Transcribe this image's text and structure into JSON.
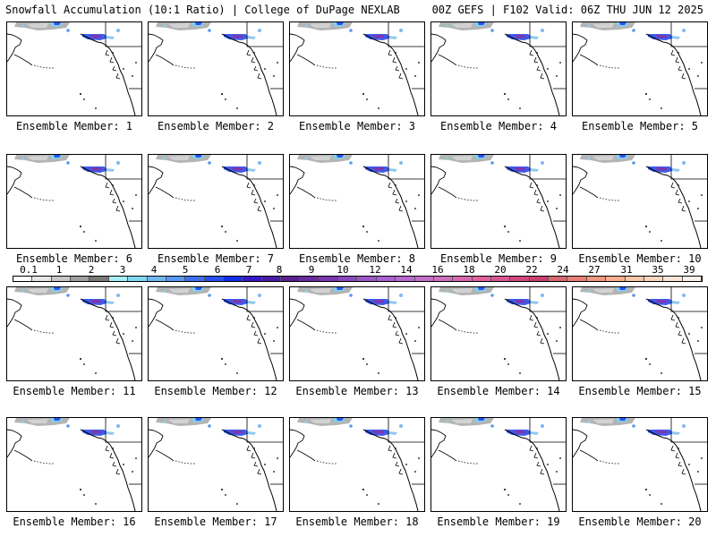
{
  "header": {
    "left": "Snowfall Accumulation (10:1 Ratio) | College of DuPage NEXLAB",
    "right": "00Z GEFS | F102 Valid: 06Z THU JUN 12 2025"
  },
  "members": [
    "Ensemble Member: 1",
    "Ensemble Member: 2",
    "Ensemble Member: 3",
    "Ensemble Member: 4",
    "Ensemble Member: 5",
    "Ensemble Member: 6",
    "Ensemble Member: 7",
    "Ensemble Member: 8",
    "Ensemble Member: 9",
    "Ensemble Member: 10",
    "Ensemble Member: 11",
    "Ensemble Member: 12",
    "Ensemble Member: 13",
    "Ensemble Member: 14",
    "Ensemble Member: 15",
    "Ensemble Member: 16",
    "Ensemble Member: 17",
    "Ensemble Member: 18",
    "Ensemble Member: 19",
    "Ensemble Member: 20"
  ],
  "legend": {
    "labels": [
      "0.1",
      "1",
      "2",
      "3",
      "4",
      "5",
      "6",
      "7",
      "8",
      "9",
      "10",
      "12",
      "14",
      "16",
      "18",
      "20",
      "22",
      "24",
      "27",
      "31",
      "35",
      "39"
    ],
    "colors": [
      "#ffffff",
      "#e6e6e6",
      "#c8c8c8",
      "#a0a0a0",
      "#7a7a7a",
      "#a8f0f8",
      "#80d8f0",
      "#70b8f0",
      "#5898f0",
      "#4070f0",
      "#2850f0",
      "#1030e8",
      "#3818c8",
      "#4a1aa8",
      "#5a2090",
      "#6a2aa0",
      "#7a38b0",
      "#8a48c0",
      "#9a58c8",
      "#aa60d0",
      "#b868d0",
      "#c470c8",
      "#d070c0",
      "#d868b0",
      "#e060a0",
      "#d85890",
      "#d04880",
      "#c84070",
      "#d86870",
      "#e88078",
      "#f09880",
      "#f8b090",
      "#f8c8a8",
      "#f8d8c0",
      "#fae6d6",
      "#fdf2ea"
    ]
  }
}
